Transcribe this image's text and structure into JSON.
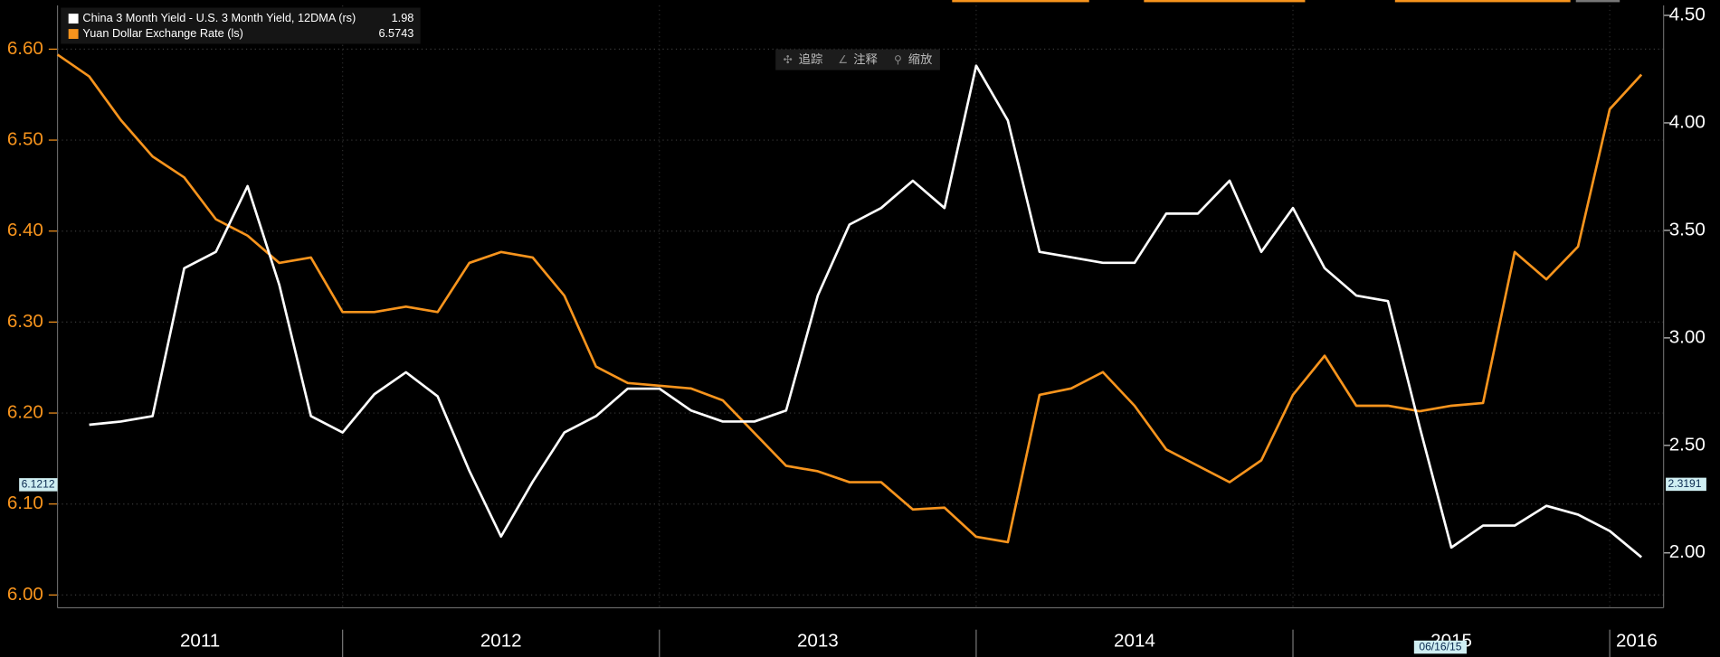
{
  "chart_data": {
    "type": "line",
    "legend": {
      "position": "top-left"
    },
    "grid": true,
    "x": [
      2011.1,
      2011.2,
      2011.3,
      2011.4,
      2011.5,
      2011.6,
      2011.7,
      2011.8,
      2011.9,
      2012.0,
      2012.1,
      2012.2,
      2012.3,
      2012.4,
      2012.5,
      2012.6,
      2012.7,
      2012.8,
      2012.9,
      2013.0,
      2013.1,
      2013.2,
      2013.3,
      2013.4,
      2013.5,
      2013.6,
      2013.7,
      2013.8,
      2013.9,
      2014.0,
      2014.1,
      2014.2,
      2014.3,
      2014.4,
      2014.5,
      2014.6,
      2014.7,
      2014.8,
      2014.9,
      2015.0,
      2015.1,
      2015.2,
      2015.3,
      2015.4,
      2015.5,
      2015.6,
      2015.7,
      2015.8,
      2015.9,
      2016.0,
      2016.1
    ],
    "xlim": [
      2011.1,
      2016.17
    ],
    "xticks": [
      {
        "value": 2011,
        "label": "2011"
      },
      {
        "value": 2012,
        "label": "2012"
      },
      {
        "value": 2013,
        "label": "2013"
      },
      {
        "value": 2014,
        "label": "2014"
      },
      {
        "value": 2015,
        "label": "2015"
      },
      {
        "value": 2016,
        "label": "2016"
      }
    ],
    "ylim": [
      5.986,
      6.648
    ],
    "yticks": [
      {
        "value": 6,
        "label": "6.00"
      },
      {
        "value": 6.1,
        "label": "6.10"
      },
      {
        "value": 6.2,
        "label": "6.20"
      },
      {
        "value": 6.3,
        "label": "6.30"
      },
      {
        "value": 6.4,
        "label": "6.40"
      },
      {
        "value": 6.5,
        "label": "6.50"
      },
      {
        "value": 6.6,
        "label": "6.60"
      }
    ],
    "y2lim": [
      1.745,
      4.546
    ],
    "y2ticks": [
      {
        "value": 2,
        "label": "2.00"
      },
      {
        "value": 2.5,
        "label": "2.50"
      },
      {
        "value": 3,
        "label": "3.00"
      },
      {
        "value": 3.5,
        "label": "3.50"
      },
      {
        "value": 4,
        "label": "4.00"
      },
      {
        "value": 4.5,
        "label": "4.50"
      }
    ],
    "series": [
      {
        "name": "China 3 Month Yield - U.S. 3 Month Yield, 12DMA (rs)",
        "color": "#ffffff",
        "axis": "y2",
        "last_value": 1.98,
        "values": [
          null,
          2.596,
          2.611,
          2.636,
          3.324,
          3.4,
          3.706,
          3.247,
          2.636,
          2.56,
          2.738,
          2.84,
          2.728,
          2.382,
          2.076,
          2.331,
          2.56,
          2.636,
          2.764,
          2.764,
          2.662,
          2.611,
          2.611,
          2.662,
          3.197,
          3.527,
          3.604,
          3.731,
          3.604,
          4.266,
          4.011,
          3.4,
          3.375,
          3.349,
          3.349,
          3.578,
          3.578,
          3.731,
          3.4,
          3.604,
          3.324,
          3.197,
          3.171,
          2.586,
          2.025,
          2.127,
          2.127,
          2.219,
          2.178,
          2.102,
          1.98
        ]
      },
      {
        "name": "Yuan Dollar Exchange Rate (ls)",
        "color": "#f7941d",
        "last_value": 6.5743,
        "values": [
          6.594,
          6.57,
          6.522,
          6.482,
          6.459,
          6.413,
          6.395,
          6.365,
          6.371,
          6.311,
          6.311,
          6.317,
          6.311,
          6.365,
          6.377,
          6.371,
          6.329,
          6.251,
          6.233,
          6.23,
          6.227,
          6.214,
          6.178,
          6.142,
          6.136,
          6.124,
          6.124,
          6.094,
          6.096,
          6.064,
          6.058,
          6.22,
          6.227,
          6.245,
          6.208,
          6.16,
          6.142,
          6.124,
          6.148,
          6.22,
          6.263,
          6.208,
          6.208,
          6.202,
          6.208,
          6.211,
          6.377,
          6.347,
          6.383,
          6.534,
          6.572
        ]
      }
    ],
    "cursor": {
      "date": "06/16/15",
      "y_value": 6.1212,
      "y2_value": 2.3191
    }
  },
  "toolbar": [
    "追踪",
    "注释",
    "缩放"
  ]
}
